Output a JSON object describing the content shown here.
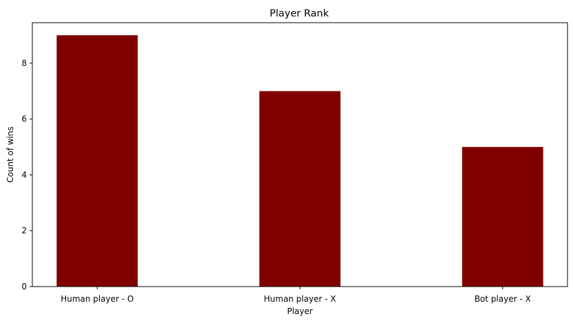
{
  "chart_data": {
    "type": "bar",
    "title": "Player Rank",
    "xlabel": "Player",
    "ylabel": "Count of wins",
    "categories": [
      "Human player - O",
      "Human player - X",
      "Bot player - X"
    ],
    "values": [
      9,
      7,
      5
    ],
    "ylim": [
      0,
      9.45
    ],
    "yticks": [
      0,
      2,
      4,
      6,
      8
    ],
    "grid": false,
    "bar_color": "#800000"
  }
}
